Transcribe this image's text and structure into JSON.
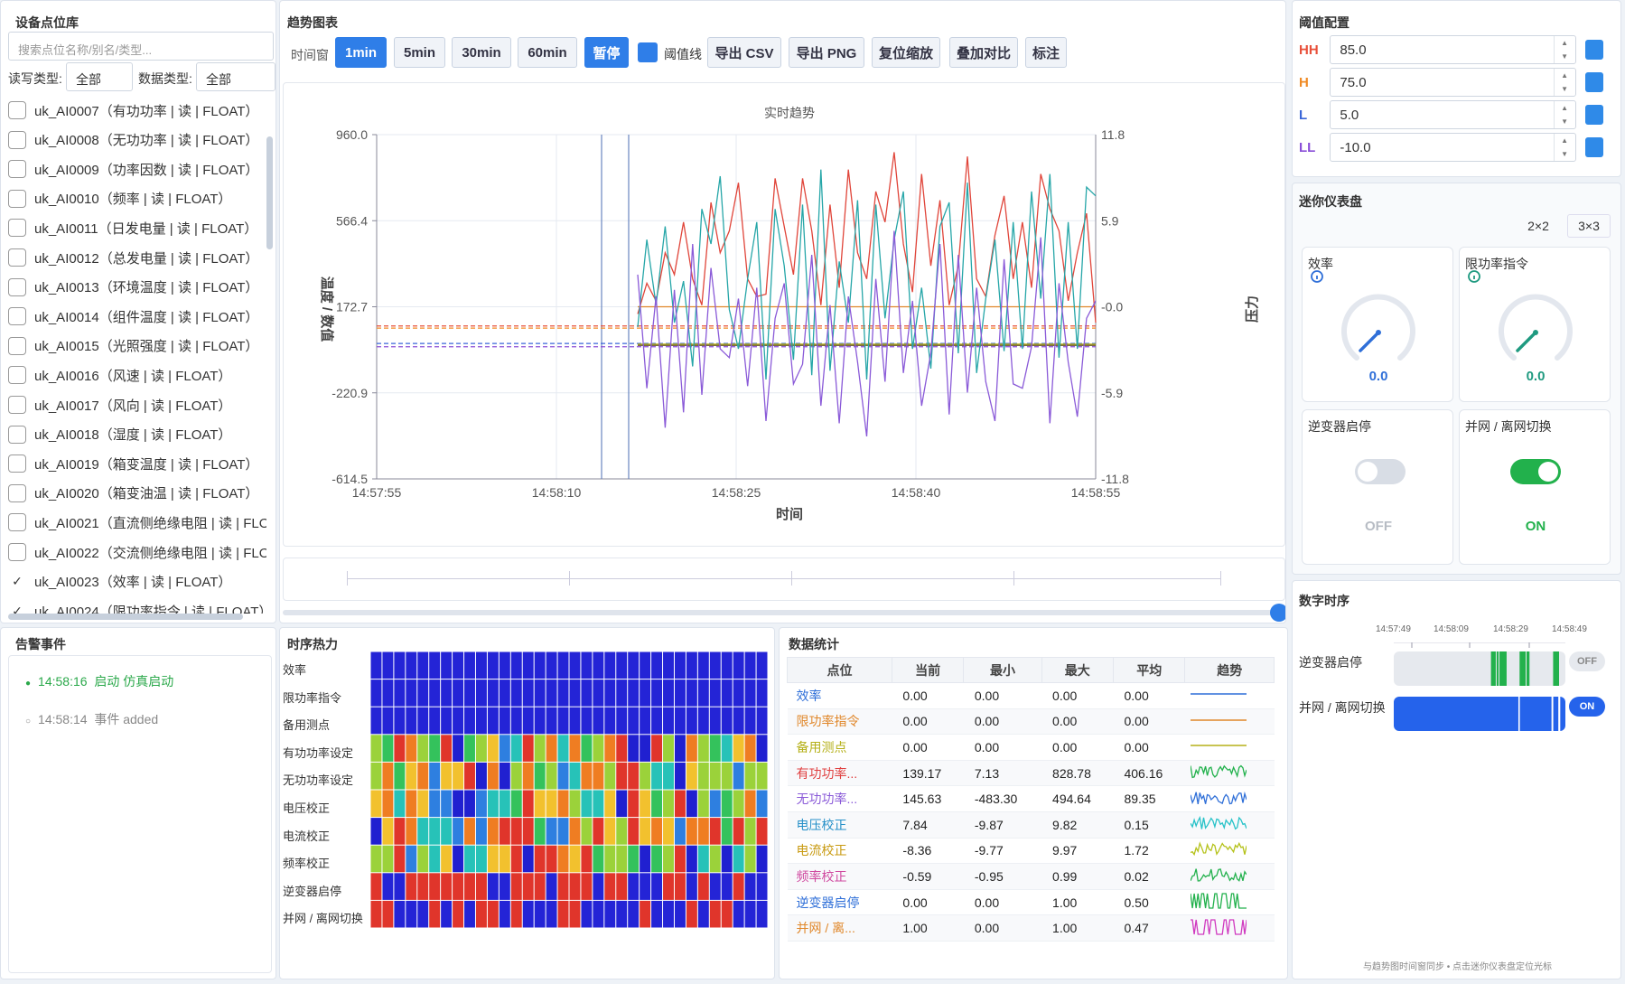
{
  "device_panel": {
    "title": "设备点位库",
    "search_placeholder": "搜索点位名称/别名/类型...",
    "rw_label": "读写类型:",
    "rw_value": "全部",
    "dt_label": "数据类型:",
    "dt_value": "全部",
    "items": [
      {
        "label": "uk_AI0007（有功功率 | 读 | FLOAT）",
        "checked": false
      },
      {
        "label": "uk_AI0008（无功功率 | 读 | FLOAT）",
        "checked": false
      },
      {
        "label": "uk_AI0009（功率因数 | 读 | FLOAT）",
        "checked": false
      },
      {
        "label": "uk_AI0010（频率 | 读 | FLOAT）",
        "checked": false
      },
      {
        "label": "uk_AI0011（日发电量 | 读 | FLOAT）",
        "checked": false
      },
      {
        "label": "uk_AI0012（总发电量 | 读 | FLOAT）",
        "checked": false
      },
      {
        "label": "uk_AI0013（环境温度 | 读 | FLOAT）",
        "checked": false
      },
      {
        "label": "uk_AI0014（组件温度 | 读 | FLOAT）",
        "checked": false
      },
      {
        "label": "uk_AI0015（光照强度 | 读 | FLOAT）",
        "checked": false
      },
      {
        "label": "uk_AI0016（风速 | 读 | FLOAT）",
        "checked": false
      },
      {
        "label": "uk_AI0017（风向 | 读 | FLOAT）",
        "checked": false
      },
      {
        "label": "uk_AI0018（湿度 | 读 | FLOAT）",
        "checked": false
      },
      {
        "label": "uk_AI0019（箱变温度 | 读 | FLOAT）",
        "checked": false
      },
      {
        "label": "uk_AI0020（箱变油温 | 读 | FLOAT）",
        "checked": false
      },
      {
        "label": "uk_AI0021（直流侧绝缘电阻 | 读 | FLOA",
        "checked": false
      },
      {
        "label": "uk_AI0022（交流侧绝缘电阻 | 读 | FLOA",
        "checked": false
      },
      {
        "label": "uk_AI0023（效率 | 读 | FLOAT）",
        "checked": true
      },
      {
        "label": "uk_AI0024（限功率指令 | 读 | FLOAT）",
        "checked": true
      }
    ]
  },
  "trend": {
    "title": "趋势图表",
    "window_label": "时间窗",
    "buttons": [
      "1min",
      "5min",
      "30min",
      "60min"
    ],
    "active_window": "1min",
    "pause": "暂停",
    "threshold_toggle": "阈值线",
    "export_csv": "导出 CSV",
    "export_png": "导出 PNG",
    "reset_zoom": "复位缩放",
    "overlay": "叠加对比",
    "mark": "标注"
  },
  "chart_data": {
    "type": "line",
    "title": "实时趋势",
    "xlabel": "时间",
    "ylabel": "温度 / 数值",
    "y2label": "压力",
    "x_ticks": [
      "14:57:55",
      "14:58:10",
      "14:58:25",
      "14:58:40",
      "14:58:55"
    ],
    "y_ticks": [
      "960.0",
      "566.4",
      "172.7",
      "-220.9",
      "-614.5"
    ],
    "y2_ticks": [
      "11.8",
      "5.9",
      "-0.0",
      "-5.9",
      "-11.8"
    ],
    "ylim": [
      -614.5,
      960.0
    ],
    "y2lim": [
      -11.8,
      11.8
    ],
    "thresholds": [
      {
        "name": "HH",
        "value": 85.0,
        "color": "#e8503a"
      },
      {
        "name": "H",
        "value": 75.0,
        "color": "#f08a24"
      },
      {
        "name": "L",
        "value": 5.0,
        "color": "#3a66d8"
      },
      {
        "name": "LL",
        "value": -10.0,
        "color": "#8a4fd8"
      }
    ],
    "series": [
      {
        "color": "#e0453a",
        "values": [
          140,
          280,
          200,
          420,
          320,
          560,
          300,
          180,
          650,
          420,
          520,
          740,
          300,
          220,
          230,
          760,
          540,
          320,
          760,
          520,
          180,
          640,
          260,
          800,
          420,
          300,
          700,
          560,
          880,
          460,
          240,
          780,
          360,
          660,
          180,
          360,
          860,
          300,
          220,
          500,
          680,
          300,
          560,
          260,
          780,
          620,
          520,
          200,
          420,
          600,
          100
        ]
      },
      {
        "color": "#26a6a8",
        "values": [
          80,
          480,
          180,
          540,
          100,
          290,
          -100,
          620,
          460,
          770,
          160,
          -20,
          300,
          560,
          -160,
          620,
          360,
          -70,
          640,
          -140,
          800,
          -120,
          380,
          100,
          660,
          -160,
          640,
          120,
          480,
          700,
          -20,
          260,
          -110,
          540,
          650,
          -40,
          740,
          -130,
          210,
          480,
          -30,
          560,
          -20,
          700,
          210,
          780,
          -60,
          560,
          -20,
          720,
          680
        ]
      },
      {
        "color": "#8a5ad8",
        "values": [
          320,
          -200,
          220,
          -380,
          250,
          -310,
          460,
          -230,
          350,
          -20,
          -60,
          210,
          -190,
          260,
          -350,
          120,
          280,
          -180,
          -90,
          410,
          -280,
          180,
          -360,
          220,
          -80,
          -420,
          300,
          -170,
          520,
          -130,
          200,
          -280,
          -40,
          460,
          -320,
          410,
          -220,
          260,
          -170,
          -350,
          390,
          -180,
          -200,
          -10,
          490,
          -360,
          280,
          -80,
          -330,
          120,
          200
        ]
      }
    ]
  },
  "threshold_panel": {
    "title": "阈值配置",
    "rows": [
      {
        "label": "HH",
        "value": "85.0",
        "color": "#e8503a"
      },
      {
        "label": "H",
        "value": "75.0",
        "color": "#f08a24"
      },
      {
        "label": "L",
        "value": "5.0",
        "color": "#3a66d8"
      },
      {
        "label": "LL",
        "value": "-10.0",
        "color": "#8a4fd8"
      }
    ]
  },
  "mini_panel": {
    "title": "迷你仪表盘",
    "layout_2": "2×2",
    "layout_3": "3×3",
    "gauges": [
      {
        "label": "效率",
        "value": "0.0",
        "color": "#2f6fd8"
      },
      {
        "label": "限功率指令",
        "value": "0.0",
        "color": "#1f9a80"
      }
    ],
    "switches": [
      {
        "label": "逆变器启停",
        "state": "OFF"
      },
      {
        "label": "并网 / 离网切换",
        "state": "ON"
      }
    ]
  },
  "alarm_panel": {
    "title": "告警事件",
    "events": [
      {
        "time": "14:58:16",
        "text": "启动 仿真启动"
      },
      {
        "time": "14:58:14",
        "text": "事件 added"
      }
    ]
  },
  "heatmap_panel": {
    "title": "时序热力",
    "rows": [
      "效率",
      "限功率指令",
      "备用测点",
      "有功功率设定",
      "无功功率设定",
      "电压校正",
      "电流校正",
      "频率校正",
      "逆变器启停",
      "并网 / 离网切换"
    ]
  },
  "stats_panel": {
    "title": "数据统计",
    "headers": [
      "点位",
      "当前",
      "最小",
      "最大",
      "平均",
      "趋势"
    ],
    "rows": [
      {
        "name": "效率",
        "color": "#2f6fd8",
        "cur": "0.00",
        "min": "0.00",
        "max": "0.00",
        "avg": "0.00"
      },
      {
        "name": "限功率指令",
        "color": "#e0872a",
        "cur": "0.00",
        "min": "0.00",
        "max": "0.00",
        "avg": "0.00"
      },
      {
        "name": "备用测点",
        "color": "#b5b018",
        "cur": "0.00",
        "min": "0.00",
        "max": "0.00",
        "avg": "0.00"
      },
      {
        "name": "有功功率...",
        "color": "#e04040",
        "cur": "139.17",
        "min": "7.13",
        "max": "828.78",
        "avg": "406.16"
      },
      {
        "name": "无功功率...",
        "color": "#8a5ad8",
        "cur": "145.63",
        "min": "-483.30",
        "max": "494.64",
        "avg": "89.35"
      },
      {
        "name": "电压校正",
        "color": "#2690c8",
        "cur": "7.84",
        "min": "-9.87",
        "max": "9.82",
        "avg": "0.15"
      },
      {
        "name": "电流校正",
        "color": "#c89a10",
        "cur": "-8.36",
        "min": "-9.77",
        "max": "9.97",
        "avg": "1.72"
      },
      {
        "name": "频率校正",
        "color": "#d04aa0",
        "cur": "-0.59",
        "min": "-0.95",
        "max": "0.99",
        "avg": "0.02"
      },
      {
        "name": "逆变器启停",
        "color": "#2f6fd8",
        "cur": "0.00",
        "min": "0.00",
        "max": "1.00",
        "avg": "0.50"
      },
      {
        "name": "并网 / 离...",
        "color": "#e0872a",
        "cur": "1.00",
        "min": "0.00",
        "max": "1.00",
        "avg": "0.47"
      }
    ]
  },
  "digital_panel": {
    "title": "数字时序",
    "ticks": [
      "14:57:49",
      "14:58:09",
      "14:58:29",
      "14:58:49"
    ],
    "rows": [
      {
        "label": "逆变器启停",
        "state": "OFF"
      },
      {
        "label": "并网 / 离网切换",
        "state": "ON"
      }
    ],
    "footer": "与趋势图时间窗同步 • 点击迷你仪表盘定位光标"
  }
}
